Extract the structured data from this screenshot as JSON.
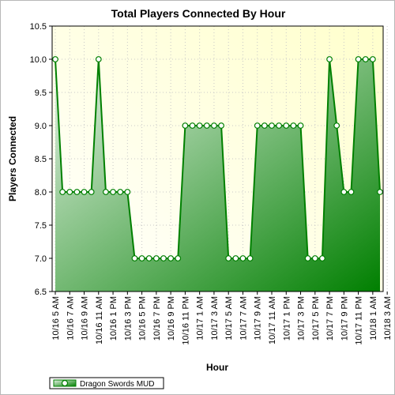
{
  "chart_data": {
    "type": "area",
    "title": "Total Players Connected By Hour",
    "xlabel": "Hour",
    "ylabel": "Players Connected",
    "ylim": [
      6.5,
      10.5
    ],
    "yticks": [
      "6.5",
      "7.0",
      "7.5",
      "8.0",
      "8.5",
      "9.0",
      "9.5",
      "10.0",
      "10.5"
    ],
    "xtick_labels": [
      "10/16 5 AM",
      "10/16 7 AM",
      "10/16 9 AM",
      "10/16 11 AM",
      "10/16 1 PM",
      "10/16 3 PM",
      "10/16 5 PM",
      "10/16 7 PM",
      "10/16 9 PM",
      "10/16 11 PM",
      "10/17 1 AM",
      "10/17 3 AM",
      "10/17 5 AM",
      "10/17 7 AM",
      "10/17 9 AM",
      "10/17 11 AM",
      "10/17 1 PM",
      "10/17 3 PM",
      "10/17 5 PM",
      "10/17 7 PM",
      "10/17 9 PM",
      "10/17 11 PM",
      "10/18 1 AM",
      "10/18 3 AM"
    ],
    "x_start": "10/16 5 AM",
    "x_step": "1 hour",
    "grid": true,
    "legend_position": "bottom-left",
    "series": [
      {
        "name": "Dragon Swords MUD",
        "color": "#007f00",
        "values": [
          10,
          8,
          8,
          8,
          8,
          8,
          10,
          8,
          8,
          8,
          8,
          7,
          7,
          7,
          7,
          7,
          7,
          7,
          9,
          9,
          9,
          9,
          9,
          9,
          7,
          7,
          7,
          7,
          9,
          9,
          9,
          9,
          9,
          9,
          9,
          7,
          7,
          7,
          10,
          9,
          8,
          8,
          10,
          10,
          10,
          8
        ]
      }
    ]
  }
}
